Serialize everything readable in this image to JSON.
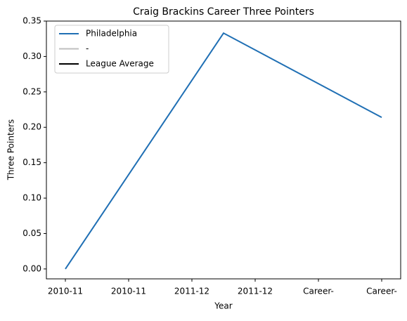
{
  "chart_data": {
    "type": "line",
    "title": "Craig Brackins Career Three Pointers",
    "xlabel": "Year",
    "ylabel": "Three Pointers",
    "x": [
      0,
      2.5,
      5
    ],
    "series": [
      {
        "name": "Philadelphia",
        "color": "#1f6fb4",
        "values": [
          0,
          0.333,
          0.214
        ]
      },
      {
        "name": "-",
        "color": "#bfbfbf",
        "values": [
          null,
          null,
          null
        ]
      },
      {
        "name": "League Average",
        "color": "#000000",
        "values": [
          null,
          null,
          null
        ]
      }
    ],
    "xlim": [
      -0.3,
      5.3
    ],
    "xticks": [
      {
        "value": 0,
        "label": "2010-11"
      },
      {
        "value": 1,
        "label": "2010-11"
      },
      {
        "value": 2,
        "label": "2011-12"
      },
      {
        "value": 3,
        "label": "2011-12"
      },
      {
        "value": 4,
        "label": "Career-"
      },
      {
        "value": 5,
        "label": "Career-"
      }
    ],
    "ylim": [
      -0.014,
      0.35
    ],
    "yticks": [
      {
        "value": 0,
        "label": "0.00"
      },
      {
        "value": 0.05,
        "label": "0.05"
      },
      {
        "value": 0.1,
        "label": "0.10"
      },
      {
        "value": 0.15,
        "label": "0.15"
      },
      {
        "value": 0.2,
        "label": "0.20"
      },
      {
        "value": 0.25,
        "label": "0.25"
      },
      {
        "value": 0.3,
        "label": "0.30"
      },
      {
        "value": 0.35,
        "label": "0.35"
      }
    ],
    "legend": "upper left"
  }
}
